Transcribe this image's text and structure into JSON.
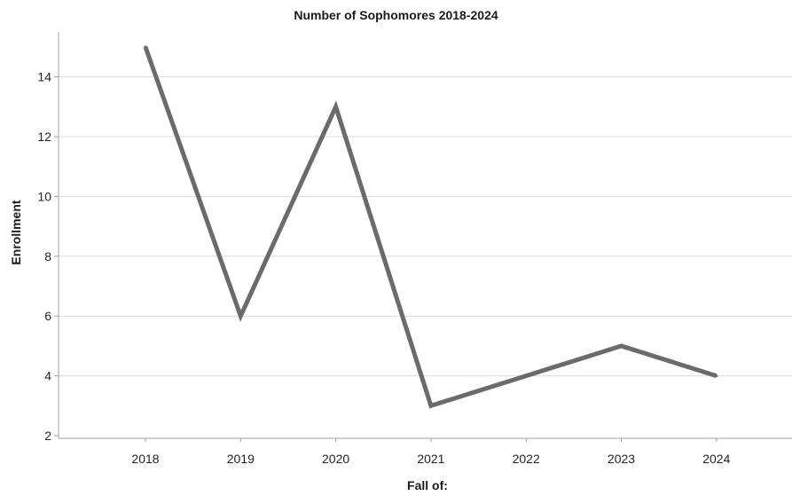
{
  "chart_data": {
    "type": "line",
    "title": "Number of Sophomores 2018-2024",
    "xlabel": "Fall of:",
    "ylabel": "Enrollment",
    "categories": [
      "2018",
      "2019",
      "2020",
      "2021",
      "2022",
      "2023",
      "2024"
    ],
    "series": [
      {
        "values": [
          15,
          6,
          13,
          3,
          4,
          5,
          4
        ]
      }
    ],
    "ylim": [
      2,
      15
    ],
    "yticks": [
      2,
      4,
      6,
      8,
      10,
      12,
      14
    ],
    "grid": true,
    "legend": "none",
    "colors": {
      "line": "#6b6b6b",
      "grid": "#d9d9d9",
      "axis": "#a0a0a0",
      "text": "#222222"
    }
  }
}
